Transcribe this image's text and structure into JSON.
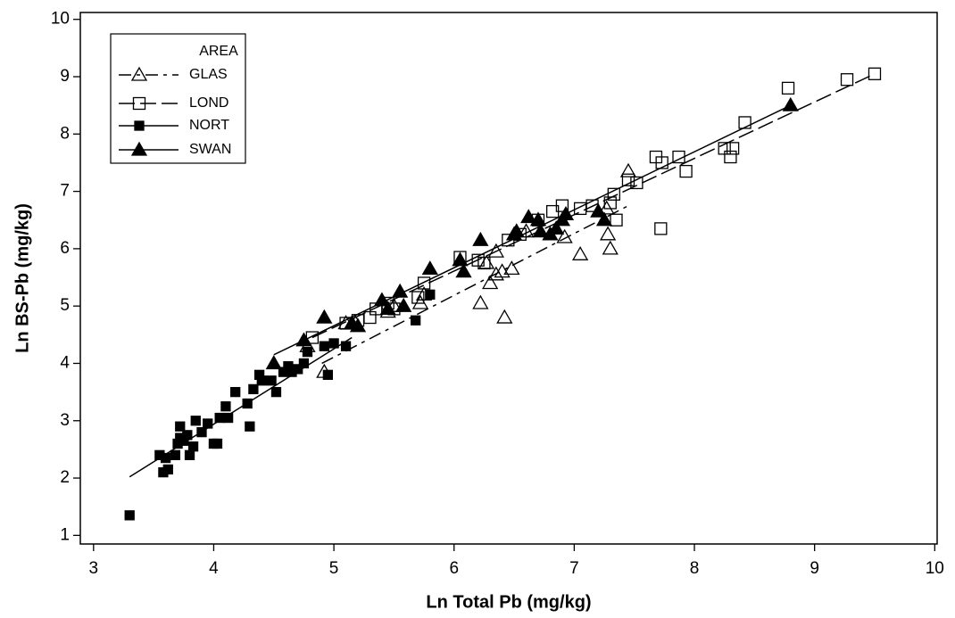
{
  "chart_data": {
    "type": "scatter",
    "x_label": "Ln Total Pb (mg/kg)",
    "y_label": "Ln BS-Pb (mg/kg)",
    "legend_title": "AREA",
    "legend_position": "upper left",
    "xlim": [
      2.89,
      10.02
    ],
    "ylim": [
      0.85,
      10.12
    ],
    "xticks": [
      3,
      4,
      5,
      6,
      7,
      8,
      9,
      10
    ],
    "yticks": [
      1,
      2,
      3,
      4,
      5,
      6,
      7,
      8,
      9,
      10
    ],
    "series": [
      {
        "name": "GLAS",
        "color": "#000000",
        "marker": "triangle-open",
        "dash": "14,6,4,6",
        "x": [
          4.92,
          5.18,
          5.45,
          5.5,
          5.72,
          5.75,
          6.22,
          6.27,
          6.3,
          6.35,
          6.4,
          6.42,
          6.48,
          6.35,
          6.92,
          7.05,
          7.28,
          7.3,
          7.27,
          7.45,
          6.6,
          5.1,
          4.78
        ],
        "y": [
          3.85,
          4.7,
          4.9,
          5.0,
          5.05,
          5.2,
          5.05,
          5.75,
          5.4,
          5.55,
          5.6,
          4.8,
          5.65,
          5.95,
          6.2,
          5.9,
          6.25,
          6.0,
          6.7,
          7.35,
          6.3,
          4.7,
          4.3
        ],
        "fit": {
          "x": [
            4.9,
            7.45
          ],
          "y": [
            4.0,
            6.75
          ]
        }
      },
      {
        "name": "LOND",
        "color": "#000000",
        "marker": "square-open",
        "dash": "18,6",
        "x": [
          4.82,
          5.1,
          5.2,
          5.3,
          5.35,
          5.45,
          5.5,
          5.7,
          5.75,
          6.05,
          6.25,
          6.45,
          6.55,
          6.7,
          6.82,
          6.9,
          7.05,
          7.15,
          7.3,
          7.33,
          7.35,
          7.45,
          7.52,
          7.68,
          7.73,
          7.72,
          7.87,
          7.93,
          8.25,
          8.3,
          8.32,
          8.42,
          8.78,
          9.27,
          9.5,
          6.2
        ],
        "y": [
          4.45,
          4.7,
          4.75,
          4.8,
          4.95,
          5.05,
          4.95,
          5.15,
          5.4,
          5.85,
          5.75,
          6.15,
          6.25,
          6.5,
          6.65,
          6.75,
          6.7,
          6.75,
          6.8,
          6.95,
          6.5,
          7.2,
          7.15,
          7.6,
          7.5,
          6.35,
          7.6,
          7.35,
          7.75,
          7.6,
          7.75,
          8.2,
          8.8,
          8.95,
          9.05,
          5.8
        ],
        "fit": {
          "x": [
            4.82,
            9.5
          ],
          "y": [
            4.45,
            9.05
          ]
        }
      },
      {
        "name": "NORT",
        "color": "#000000",
        "marker": "square-filled",
        "dash": "none",
        "x": [
          3.3,
          3.55,
          3.58,
          3.62,
          3.6,
          3.68,
          3.7,
          3.72,
          3.72,
          3.75,
          3.78,
          3.8,
          3.83,
          3.85,
          3.9,
          3.95,
          4.0,
          4.03,
          4.05,
          4.1,
          4.12,
          4.18,
          4.28,
          4.3,
          4.33,
          4.38,
          4.4,
          4.48,
          4.52,
          4.58,
          4.62,
          4.65,
          4.7,
          4.75,
          4.78,
          4.92,
          4.95,
          5.0,
          5.1,
          5.68,
          5.8
        ],
        "y": [
          1.35,
          2.4,
          2.1,
          2.15,
          2.35,
          2.4,
          2.6,
          2.7,
          2.9,
          2.65,
          2.75,
          2.4,
          2.55,
          3.0,
          2.8,
          2.95,
          2.6,
          2.6,
          3.05,
          3.25,
          3.05,
          3.5,
          3.3,
          2.9,
          3.55,
          3.8,
          3.7,
          3.7,
          3.5,
          3.85,
          3.95,
          3.85,
          3.9,
          4.0,
          4.2,
          4.3,
          3.8,
          4.35,
          4.3,
          4.75,
          5.2
        ],
        "fit": {
          "x": [
            3.3,
            5.15
          ],
          "y": [
            2.02,
            4.45
          ]
        }
      },
      {
        "name": "SWAN",
        "color": "#000000",
        "marker": "triangle-filled",
        "dash": "none",
        "x": [
          4.5,
          4.75,
          4.92,
          5.15,
          5.2,
          5.4,
          5.45,
          5.55,
          5.58,
          5.8,
          6.05,
          6.08,
          6.22,
          6.5,
          6.52,
          6.62,
          6.7,
          6.72,
          6.8,
          6.9,
          6.93,
          7.2,
          7.25,
          8.8,
          6.85
        ],
        "y": [
          4.0,
          4.4,
          4.8,
          4.7,
          4.65,
          5.1,
          4.95,
          5.25,
          5.0,
          5.65,
          5.8,
          5.6,
          6.15,
          6.25,
          6.3,
          6.55,
          6.5,
          6.3,
          6.25,
          6.5,
          6.6,
          6.65,
          6.5,
          8.5,
          6.35
        ],
        "fit": {
          "x": [
            4.5,
            8.8
          ],
          "y": [
            4.15,
            8.5
          ]
        }
      }
    ]
  }
}
